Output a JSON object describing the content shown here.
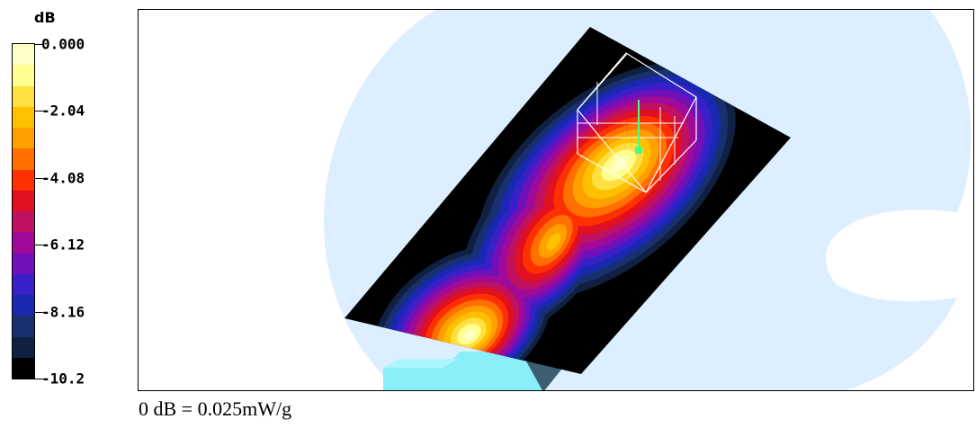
{
  "chart_data": {
    "type": "heatmap",
    "colorbar": {
      "unit": "dB",
      "ticks": [
        "0.000",
        "-2.04",
        "-4.08",
        "-6.12",
        "-8.16",
        "-10.2"
      ],
      "range": [
        -10.2,
        0.0
      ],
      "colors": [
        "#ffffc8",
        "#ffff90",
        "#ffe040",
        "#ffc000",
        "#ffa000",
        "#ff7000",
        "#ff3000",
        "#e01020",
        "#c01060",
        "#a00a98",
        "#7010b8",
        "#3820c8",
        "#1828b0",
        "#183070",
        "#102040",
        "#000000"
      ]
    },
    "caption": "0 dB = 0.025mW/g",
    "peak_db": 0.0,
    "min_db": -10.2
  }
}
